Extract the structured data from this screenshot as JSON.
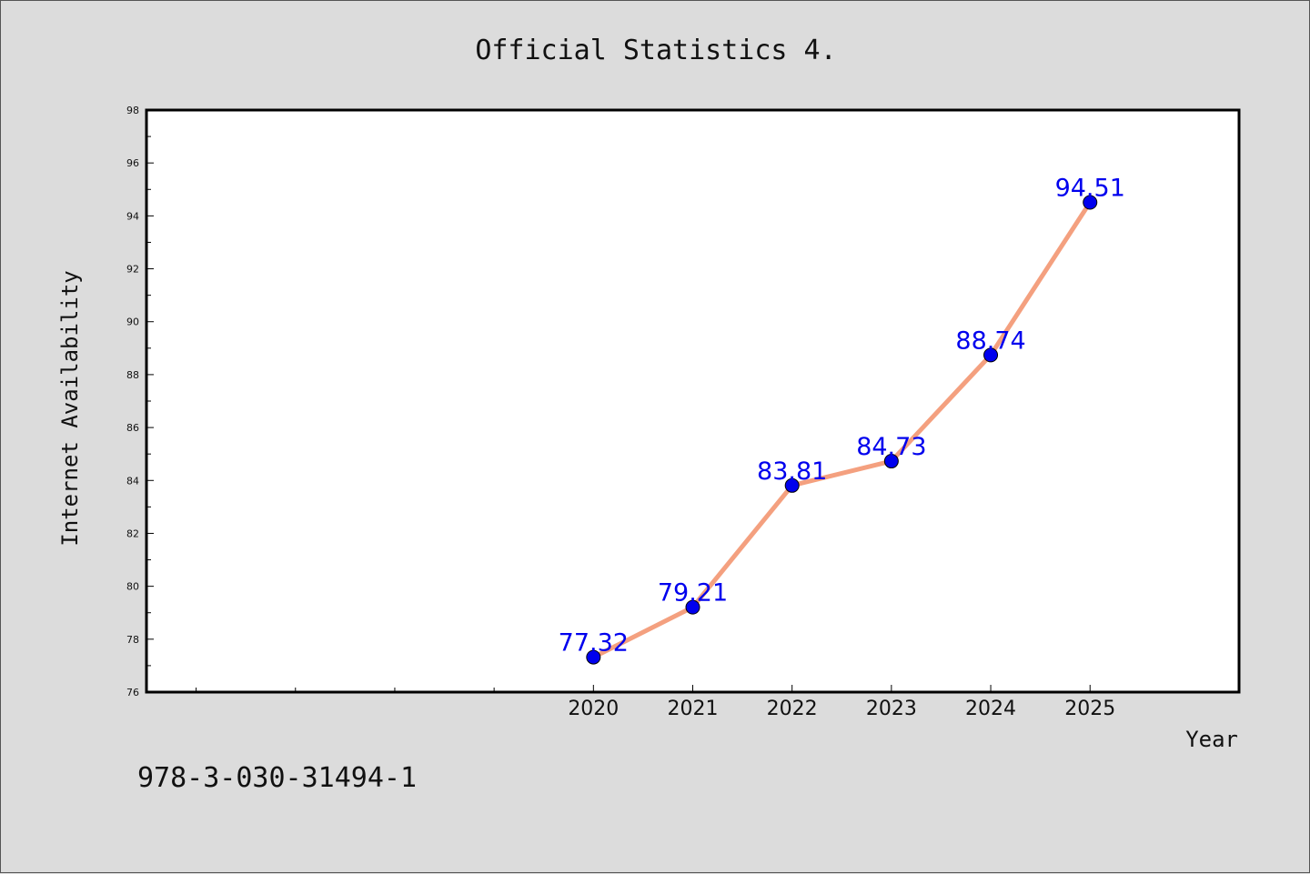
{
  "chart_data": {
    "type": "line",
    "title": "Official Statistics 4.",
    "xlabel": "Year",
    "ylabel": "Internet Availability",
    "categories": [
      "2020",
      "2021",
      "2022",
      "2023",
      "2024",
      "2025"
    ],
    "series": [
      {
        "values": [
          77.32,
          79.21,
          83.81,
          84.73,
          88.74,
          94.51
        ]
      }
    ],
    "data_labels": [
      "77.32",
      "79.21",
      "83.81",
      "84.73",
      "88.74",
      "94.51"
    ],
    "yticks": [
      "76",
      "78",
      "80",
      "82",
      "84",
      "86",
      "88",
      "90",
      "92",
      "94",
      "96",
      "98"
    ],
    "ylim": [
      76,
      98
    ],
    "x_range": [
      2015.5,
      2026.5
    ],
    "grid": false,
    "line_color": "#f4a07f",
    "marker_color": "#0000ee",
    "label_color": "#0000ee"
  },
  "footer": {
    "isbn": "978-3-030-31494-1"
  }
}
